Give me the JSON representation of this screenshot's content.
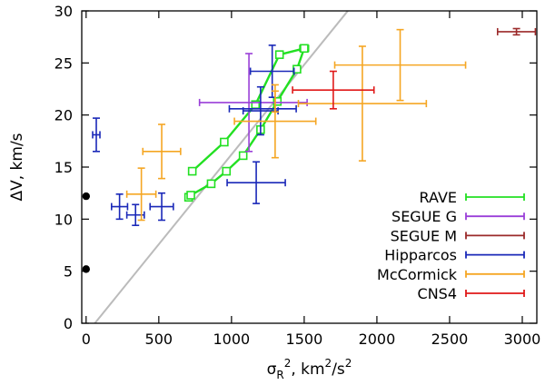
{
  "chart_data": {
    "type": "scatter",
    "xlabel": {
      "base": "σ",
      "sub": "R",
      "sup1": "2",
      "rest": ", km",
      "sup2": "2",
      "rest2": "/s",
      "sup3": "2"
    },
    "ylabel": "ΔV, km/s",
    "xlim": [
      -30,
      3100
    ],
    "ylim": [
      0,
      30
    ],
    "xticks": [
      0,
      500,
      1000,
      1500,
      2000,
      2500,
      3000
    ],
    "yticks": [
      0,
      5,
      10,
      15,
      20,
      25,
      30
    ],
    "grid": false,
    "legend_position": "bottom-right",
    "reference_line": {
      "color": "#bbbbbb",
      "points": [
        [
          60,
          0
        ],
        [
          1800,
          30
        ]
      ]
    },
    "axis_markers": [
      {
        "x": 0,
        "y": 12.2
      },
      {
        "x": 0,
        "y": 5.2
      }
    ],
    "series": [
      {
        "name": "RAVE",
        "color": "#22e022",
        "connected": true,
        "points": [
          {
            "x": 705,
            "y": 12.1,
            "xe": 20,
            "ye": 0.3
          },
          {
            "x": 720,
            "y": 12.3,
            "xe": 20,
            "ye": 0.3
          },
          {
            "x": 860,
            "y": 13.4,
            "xe": 0,
            "ye": 0
          },
          {
            "x": 965,
            "y": 14.6,
            "xe": 0,
            "ye": 0
          },
          {
            "x": 1080,
            "y": 16.1,
            "xe": 0,
            "ye": 0
          },
          {
            "x": 1200,
            "y": 18.6,
            "xe": 0,
            "ye": 0
          },
          {
            "x": 1315,
            "y": 21.3,
            "xe": 0,
            "ye": 0
          },
          {
            "x": 1450,
            "y": 24.4,
            "xe": 20,
            "ye": 0.3
          },
          {
            "x": 1500,
            "y": 26.4,
            "xe": 30,
            "ye": 0.3
          },
          {
            "x": 1330,
            "y": 25.8,
            "xe": 20,
            "ye": 0.3
          },
          {
            "x": 1165,
            "y": 21.0,
            "xe": 20,
            "ye": 0.3
          },
          {
            "x": 950,
            "y": 17.4,
            "xe": 20,
            "ye": 0.3
          },
          {
            "x": 730,
            "y": 14.6,
            "xe": 20,
            "ye": 0.3
          }
        ]
      },
      {
        "name": "SEGUE G",
        "color": "#9a3fd8",
        "connected": false,
        "points": [
          {
            "x": 1150,
            "y": 21.2,
            "xe": 370,
            "ye": 0
          },
          {
            "x": 1120,
            "y": 21.2,
            "xe": 0,
            "ye": 4.7
          }
        ]
      },
      {
        "name": "SEGUE M",
        "color": "#9b2a2a",
        "connected": false,
        "points": [
          {
            "x": 2960,
            "y": 28.0,
            "xe": 130,
            "ye": 0.3
          }
        ]
      },
      {
        "name": "Hipparcos",
        "color": "#1a28b8",
        "connected": false,
        "points": [
          {
            "x": 70,
            "y": 18.1,
            "xe": 25,
            "ye": 1.6
          },
          {
            "x": 230,
            "y": 11.2,
            "xe": 55,
            "ye": 1.2
          },
          {
            "x": 340,
            "y": 10.4,
            "xe": 60,
            "ye": 1.0
          },
          {
            "x": 520,
            "y": 11.2,
            "xe": 80,
            "ye": 1.3
          },
          {
            "x": 1170,
            "y": 13.5,
            "xe": 200,
            "ye": 2.0
          },
          {
            "x": 1200,
            "y": 20.4,
            "xe": 120,
            "ye": 2.3
          },
          {
            "x": 1215,
            "y": 20.6,
            "xe": 230,
            "ye": 0
          },
          {
            "x": 1280,
            "y": 24.2,
            "xe": 150,
            "ye": 2.5
          }
        ]
      },
      {
        "name": "McCormick",
        "color": "#f5a623",
        "connected": false,
        "points": [
          {
            "x": 380,
            "y": 12.4,
            "xe": 100,
            "ye": 2.5
          },
          {
            "x": 520,
            "y": 16.5,
            "xe": 130,
            "ye": 2.6
          },
          {
            "x": 1300,
            "y": 19.4,
            "xe": 280,
            "ye": 3.5
          },
          {
            "x": 1300,
            "y": 21.3,
            "xe": 0,
            "ye": 1.0
          },
          {
            "x": 1900,
            "y": 21.1,
            "xe": 440,
            "ye": 5.5
          },
          {
            "x": 2160,
            "y": 24.8,
            "xe": 450,
            "ye": 3.4
          }
        ]
      },
      {
        "name": "CNS4",
        "color": "#e01818",
        "connected": false,
        "points": [
          {
            "x": 1700,
            "y": 22.4,
            "xe": 280,
            "ye": 1.8
          }
        ]
      }
    ]
  }
}
